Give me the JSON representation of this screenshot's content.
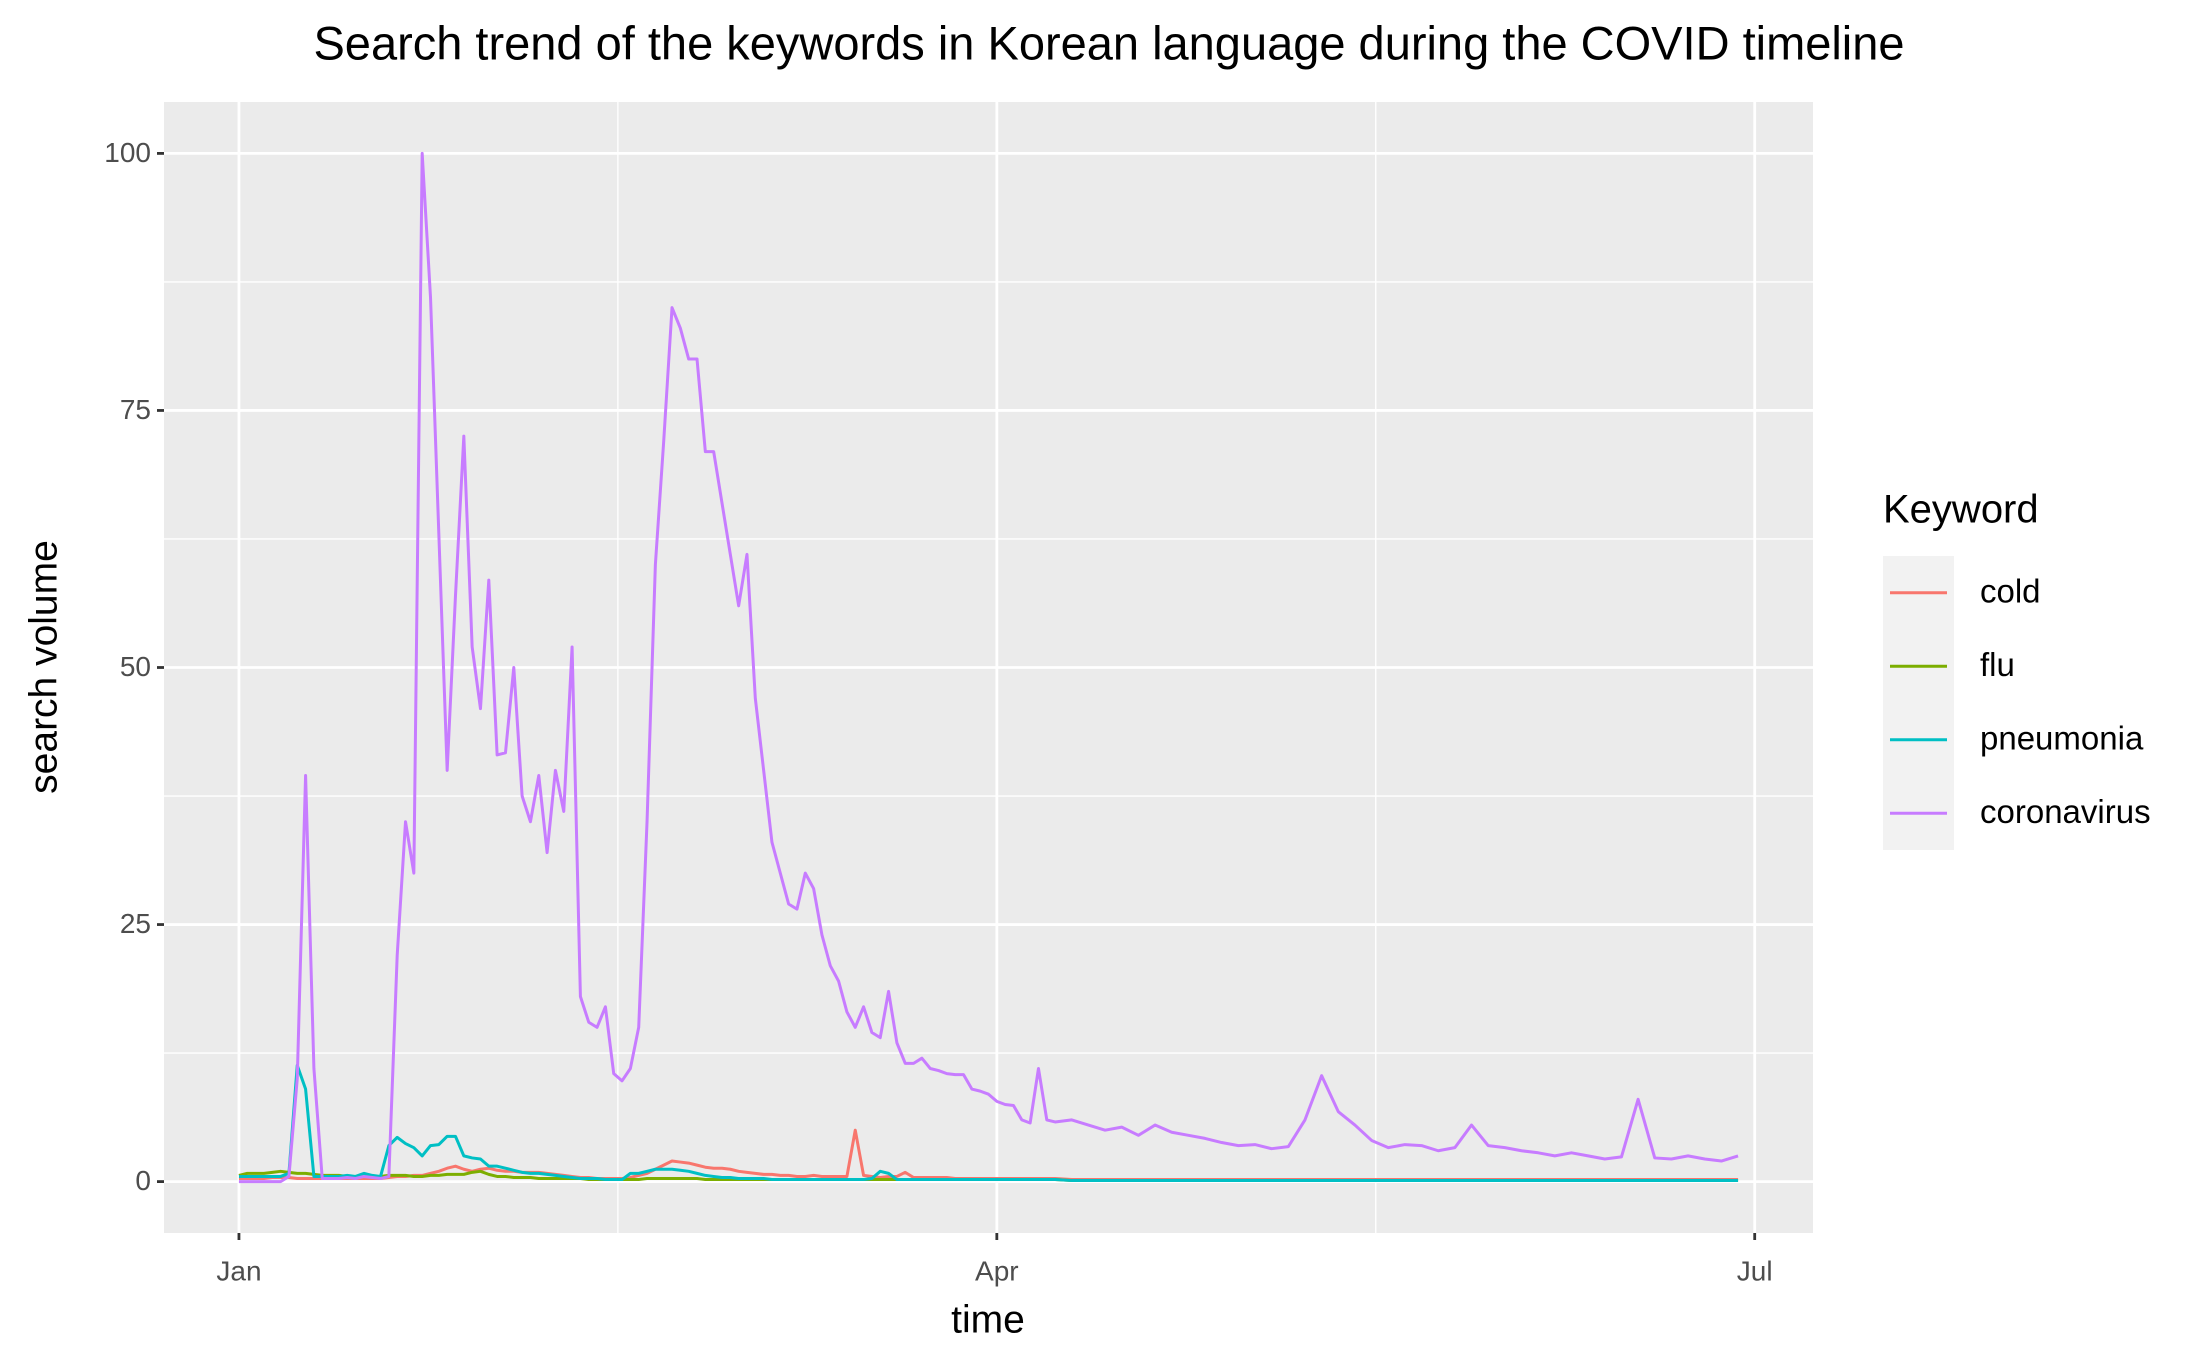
{
  "chart_data": {
    "type": "line",
    "title": "Search trend of the keywords in Korean language during the COVID timeline",
    "x_label": "time",
    "y_label": "search volume",
    "legend_title": "Keyword",
    "legend_position": "right",
    "grid": true,
    "xlim": [
      -9,
      189
    ],
    "ylim": [
      -5,
      105
    ],
    "xticks": [
      {
        "value": 0,
        "label": "Jan"
      },
      {
        "value": 91,
        "label": "Apr"
      },
      {
        "value": 182,
        "label": "Jul"
      }
    ],
    "yticks": [
      0,
      25,
      50,
      75,
      100
    ],
    "x": [
      0,
      1,
      2,
      3,
      4,
      5,
      6,
      7,
      8,
      9,
      10,
      11,
      12,
      13,
      14,
      15,
      16,
      17,
      18,
      19,
      20,
      21,
      22,
      23,
      24,
      25,
      26,
      27,
      28,
      29,
      30,
      31,
      32,
      33,
      34,
      35,
      36,
      37,
      38,
      39,
      40,
      41,
      42,
      43,
      44,
      45,
      46,
      47,
      48,
      49,
      50,
      51,
      52,
      53,
      54,
      55,
      56,
      57,
      58,
      59,
      60,
      61,
      62,
      63,
      64,
      65,
      66,
      67,
      68,
      69,
      70,
      71,
      72,
      73,
      74,
      75,
      76,
      77,
      78,
      79,
      80,
      81,
      82,
      83,
      84,
      85,
      86,
      87,
      88,
      89,
      90,
      91,
      92,
      93,
      94,
      95,
      96,
      97,
      98,
      100,
      102,
      104,
      106,
      108,
      110,
      112,
      114,
      116,
      118,
      120,
      122,
      124,
      126,
      128,
      130,
      132,
      134,
      136,
      138,
      140,
      142,
      144,
      146,
      148,
      150,
      152,
      154,
      156,
      158,
      160,
      162,
      164,
      166,
      168,
      170,
      172,
      174,
      176,
      178,
      180
    ],
    "series": [
      {
        "name": "cold",
        "color": "#f8766d",
        "values": [
          0.3,
          0.3,
          0.3,
          0.3,
          0.4,
          0.4,
          0.4,
          0.3,
          0.3,
          0.3,
          0.3,
          0.3,
          0.3,
          0.3,
          0.3,
          0.3,
          0.3,
          0.3,
          0.4,
          0.5,
          0.5,
          0.6,
          0.6,
          0.8,
          1,
          1.3,
          1.5,
          1.2,
          1,
          1.2,
          1.3,
          1.1,
          1,
          1,
          0.9,
          0.9,
          0.9,
          0.8,
          0.7,
          0.6,
          0.5,
          0.4,
          0.4,
          0.3,
          0.3,
          0.3,
          0.3,
          0.4,
          0.6,
          0.8,
          1.2,
          1.6,
          2,
          1.9,
          1.8,
          1.6,
          1.4,
          1.3,
          1.3,
          1.2,
          1,
          0.9,
          0.8,
          0.7,
          0.7,
          0.6,
          0.6,
          0.5,
          0.5,
          0.6,
          0.5,
          0.5,
          0.5,
          0.5,
          5,
          0.6,
          0.5,
          0.4,
          0.5,
          0.5,
          0.9,
          0.4,
          0.4,
          0.4,
          0.4,
          0.4,
          0.3,
          0.3,
          0.3,
          0.3,
          0.3,
          0.3,
          0.3,
          0.3,
          0.3,
          0.3,
          0.3,
          0.3,
          0.3,
          0.2,
          0.2,
          0.2,
          0.2,
          0.2,
          0.2,
          0.2,
          0.2,
          0.2,
          0.2,
          0.2,
          0.2,
          0.2,
          0.2,
          0.2,
          0.2,
          0.2,
          0.2,
          0.2,
          0.2,
          0.2,
          0.2,
          0.2,
          0.2,
          0.2,
          0.2,
          0.2,
          0.2,
          0.2,
          0.2,
          0.2,
          0.2,
          0.2,
          0.2,
          0.2,
          0.2,
          0.2,
          0.2,
          0.2,
          0.2,
          0.2
        ]
      },
      {
        "name": "flu",
        "color": "#7cae00",
        "values": [
          0.6,
          0.8,
          0.8,
          0.8,
          0.9,
          1,
          0.9,
          0.8,
          0.8,
          0.7,
          0.6,
          0.6,
          0.6,
          0.5,
          0.5,
          0.5,
          0.5,
          0.5,
          0.6,
          0.6,
          0.6,
          0.5,
          0.5,
          0.6,
          0.6,
          0.7,
          0.7,
          0.7,
          0.9,
          1,
          0.7,
          0.5,
          0.5,
          0.4,
          0.4,
          0.4,
          0.3,
          0.3,
          0.3,
          0.3,
          0.3,
          0.3,
          0.2,
          0.2,
          0.2,
          0.2,
          0.2,
          0.2,
          0.2,
          0.3,
          0.3,
          0.3,
          0.3,
          0.3,
          0.3,
          0.3,
          0.2,
          0.2,
          0.2,
          0.2,
          0.2,
          0.2,
          0.2,
          0.2,
          0.2,
          0.2,
          0.2,
          0.2,
          0.2,
          0.2,
          0.2,
          0.2,
          0.2,
          0.2,
          0.2,
          0.2,
          0.2,
          0.2,
          0.2,
          0.2,
          0.2,
          0.2,
          0.2,
          0.2,
          0.2,
          0.2,
          0.2,
          0.2,
          0.2,
          0.2,
          0.2,
          0.2,
          0.2,
          0.2,
          0.2,
          0.2,
          0.2,
          0.2,
          0.2,
          0.1,
          0.1,
          0.1,
          0.1,
          0.1,
          0.1,
          0.1,
          0.1,
          0.1,
          0.1,
          0.1,
          0.1,
          0.1,
          0.1,
          0.1,
          0.1,
          0.1,
          0.1,
          0.1,
          0.1,
          0.1,
          0.1,
          0.1,
          0.1,
          0.1,
          0.1,
          0.1,
          0.1,
          0.1,
          0.1,
          0.1,
          0.1,
          0.1,
          0.1,
          0.1,
          0.1,
          0.1,
          0.1,
          0.1,
          0.1,
          0.1
        ]
      },
      {
        "name": "pneumonia",
        "color": "#00bfc4",
        "values": [
          0.5,
          0.5,
          0.5,
          0.5,
          0.5,
          0.5,
          0.8,
          11.3,
          9,
          0.5,
          0.5,
          0.5,
          0.5,
          0.6,
          0.5,
          0.8,
          0.6,
          0.5,
          3.5,
          4.3,
          3.7,
          3.3,
          2.5,
          3.5,
          3.6,
          4.4,
          4.4,
          2.5,
          2.3,
          2.2,
          1.5,
          1.5,
          1.3,
          1.1,
          0.9,
          0.8,
          0.8,
          0.7,
          0.6,
          0.5,
          0.4,
          0.3,
          0.3,
          0.3,
          0.2,
          0.2,
          0.2,
          0.8,
          0.8,
          1,
          1.2,
          1.2,
          1.2,
          1.1,
          1,
          0.8,
          0.6,
          0.5,
          0.4,
          0.4,
          0.3,
          0.3,
          0.3,
          0.3,
          0.2,
          0.2,
          0.2,
          0.2,
          0.2,
          0.2,
          0.2,
          0.2,
          0.2,
          0.2,
          0.2,
          0.2,
          0.3,
          1,
          0.8,
          0.2,
          0.2,
          0.2,
          0.2,
          0.2,
          0.2,
          0.2,
          0.2,
          0.2,
          0.2,
          0.2,
          0.2,
          0.2,
          0.2,
          0.2,
          0.2,
          0.2,
          0.2,
          0.2,
          0.2,
          0.1,
          0.1,
          0.1,
          0.1,
          0.1,
          0.1,
          0.1,
          0.1,
          0.1,
          0.1,
          0.1,
          0.1,
          0.1,
          0.1,
          0.1,
          0.1,
          0.1,
          0.1,
          0.1,
          0.1,
          0.1,
          0.1,
          0.1,
          0.1,
          0.1,
          0.1,
          0.1,
          0.1,
          0.1,
          0.1,
          0.1,
          0.1,
          0.1,
          0.1,
          0.1,
          0.1,
          0.1,
          0.1,
          0.1,
          0.1,
          0.1
        ]
      },
      {
        "name": "coronavirus",
        "color": "#c77cff",
        "values": [
          0,
          0,
          0,
          0,
          0,
          0,
          0.5,
          10,
          39.5,
          11,
          0.3,
          0.3,
          0.3,
          0.4,
          0.3,
          0.5,
          0.4,
          0.3,
          0.5,
          22,
          35,
          30,
          100,
          86,
          63,
          40,
          57,
          72.5,
          52,
          46,
          58.5,
          41.5,
          41.7,
          50,
          37.5,
          35,
          39.5,
          32,
          40,
          36,
          52,
          18,
          15.5,
          15,
          17,
          10.5,
          9.8,
          11,
          15,
          35,
          60,
          72,
          85,
          83,
          80,
          80,
          71,
          71,
          66,
          61,
          56,
          61,
          47,
          40,
          33,
          30,
          27,
          26.5,
          30,
          28.5,
          24,
          21,
          19.5,
          16.5,
          15,
          17,
          14.5,
          14,
          18.5,
          13.5,
          11.5,
          11.5,
          12,
          11,
          10.8,
          10.5,
          10.4,
          10.4,
          9,
          8.8,
          8.5,
          7.8,
          7.5,
          7.4,
          6,
          5.7,
          11,
          6,
          5.8,
          6,
          5.5,
          5,
          5.3,
          4.5,
          5.5,
          4.8,
          4.5,
          4.2,
          3.8,
          3.5,
          3.6,
          3.2,
          3.4,
          6,
          10.3,
          6.8,
          5.5,
          4,
          3.3,
          3.6,
          3.5,
          3,
          3.3,
          5.5,
          3.5,
          3.3,
          3,
          2.8,
          2.5,
          2.8,
          2.5,
          2.2,
          2.4,
          8,
          2.3,
          2.2,
          2.5,
          2.2,
          2,
          2.5
        ]
      }
    ]
  }
}
